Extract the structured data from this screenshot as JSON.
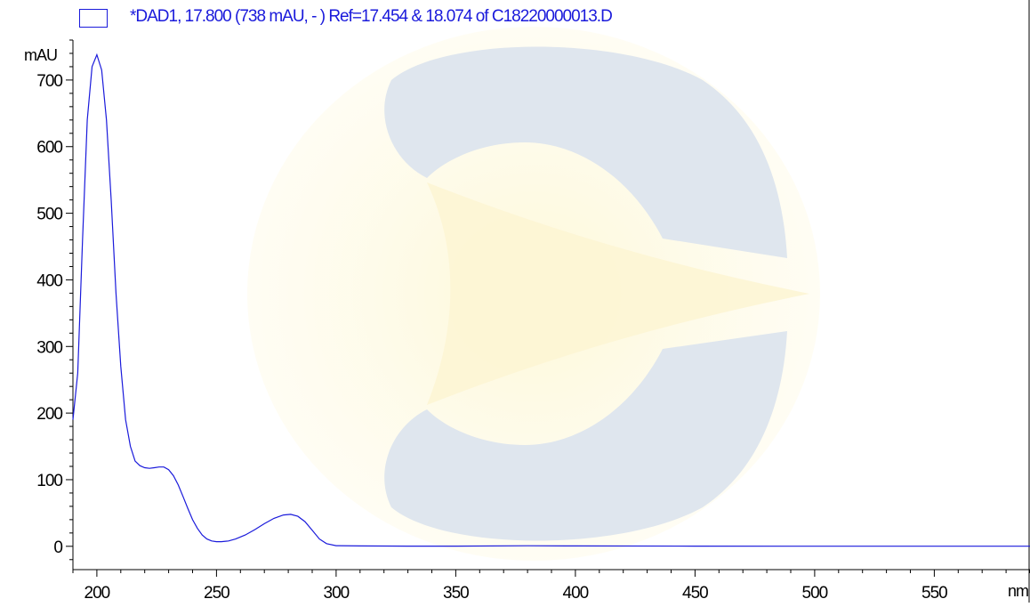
{
  "chart_data": {
    "type": "line",
    "title": "*DAD1, 17.800 (738 mAU, - ) Ref=17.454 & 18.074 of C18220000013.D",
    "ylabel": "mAU",
    "xlabel": "nm",
    "xlim": [
      190,
      590
    ],
    "ylim": [
      -35,
      760
    ],
    "x_ticks": [
      200,
      250,
      300,
      350,
      400,
      450,
      500,
      550
    ],
    "y_ticks": [
      0,
      100,
      200,
      300,
      400,
      500,
      600,
      700
    ],
    "grid": false,
    "legend_position": "top-left",
    "series": [
      {
        "name": "*DAD1, 17.800 (738 mAU, - ) Ref=17.454 & 18.074 of C18220000013.D",
        "color": "#1a1adb",
        "points": [
          [
            190,
            190
          ],
          [
            192,
            260
          ],
          [
            194,
            460
          ],
          [
            196,
            640
          ],
          [
            198,
            720
          ],
          [
            200,
            738
          ],
          [
            202,
            715
          ],
          [
            204,
            640
          ],
          [
            206,
            520
          ],
          [
            208,
            380
          ],
          [
            210,
            270
          ],
          [
            212,
            190
          ],
          [
            214,
            150
          ],
          [
            216,
            128
          ],
          [
            218,
            121
          ],
          [
            220,
            118
          ],
          [
            222,
            117
          ],
          [
            224,
            118
          ],
          [
            226,
            119
          ],
          [
            228,
            119
          ],
          [
            230,
            115
          ],
          [
            232,
            106
          ],
          [
            234,
            92
          ],
          [
            236,
            75
          ],
          [
            238,
            57
          ],
          [
            240,
            40
          ],
          [
            242,
            27
          ],
          [
            244,
            17
          ],
          [
            246,
            11
          ],
          [
            248,
            8
          ],
          [
            250,
            7
          ],
          [
            252,
            7
          ],
          [
            255,
            8
          ],
          [
            258,
            11
          ],
          [
            262,
            17
          ],
          [
            266,
            25
          ],
          [
            270,
            34
          ],
          [
            274,
            42
          ],
          [
            278,
            47
          ],
          [
            281,
            48
          ],
          [
            284,
            45
          ],
          [
            287,
            37
          ],
          [
            290,
            24
          ],
          [
            293,
            11
          ],
          [
            296,
            4
          ],
          [
            300,
            1
          ],
          [
            310,
            0.5
          ],
          [
            330,
            0.3
          ],
          [
            350,
            0.3
          ],
          [
            380,
            0.8
          ],
          [
            400,
            0.5
          ],
          [
            450,
            0.3
          ],
          [
            500,
            0.2
          ],
          [
            550,
            0.2
          ],
          [
            590,
            0.2
          ]
        ]
      }
    ]
  },
  "watermark": {
    "name": "company-logo-watermark",
    "colors": [
      "#dfe6ee",
      "#fcf8df"
    ]
  }
}
